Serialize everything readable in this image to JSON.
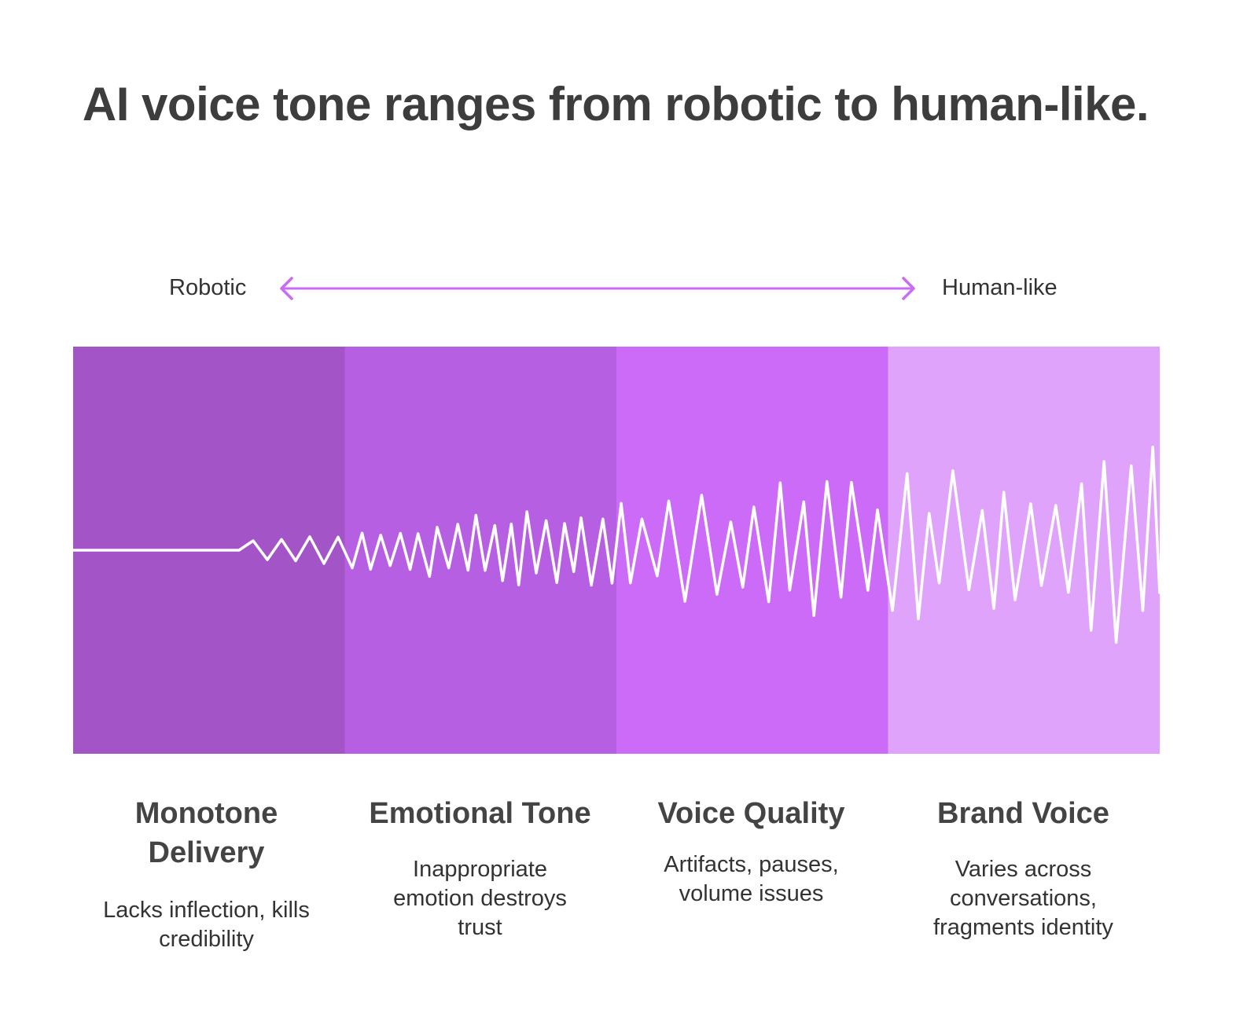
{
  "title": "AI voice tone ranges from robotic to human-like.",
  "scale": {
    "left_label": "Robotic",
    "right_label": "Human-like",
    "arrow_color": "#C96BF5"
  },
  "stages": [
    {
      "heading": "Monotone Delivery",
      "description": "Lacks inflection, kills credibility",
      "color": "#A355C8"
    },
    {
      "heading": "Emotional Tone",
      "description": "Inappropriate emotion destroys trust",
      "color": "#B75FE3"
    },
    {
      "heading": "Voice Quality",
      "description": "Artifacts, pauses, volume issues",
      "color": "#CB6BF7"
    },
    {
      "heading": "Brand Voice",
      "description": "Varies across conversations, fragments identity",
      "color": "#E0A3FB"
    }
  ],
  "waveform_color": "#FFFFFF"
}
